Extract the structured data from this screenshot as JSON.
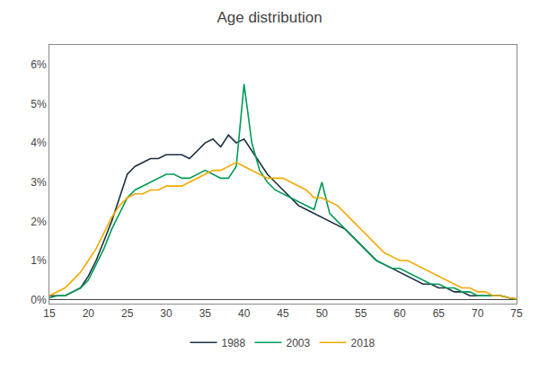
{
  "chart_data": {
    "type": "line",
    "title": "Age distribution",
    "x": [
      15,
      16,
      17,
      18,
      19,
      20,
      21,
      22,
      23,
      24,
      25,
      26,
      27,
      28,
      29,
      30,
      31,
      32,
      33,
      34,
      35,
      36,
      37,
      38,
      39,
      40,
      41,
      42,
      43,
      44,
      45,
      46,
      47,
      48,
      49,
      50,
      51,
      52,
      53,
      54,
      55,
      56,
      57,
      58,
      59,
      60,
      61,
      62,
      63,
      64,
      65,
      66,
      67,
      68,
      69,
      70,
      71,
      72,
      73,
      74,
      75
    ],
    "series": [
      {
        "name": "1988",
        "color": "#1c3040",
        "values": [
          0.001,
          0.001,
          0.001,
          0.002,
          0.003,
          0.006,
          0.01,
          0.015,
          0.02,
          0.026,
          0.032,
          0.034,
          0.035,
          0.036,
          0.036,
          0.037,
          0.037,
          0.037,
          0.036,
          0.038,
          0.04,
          0.041,
          0.039,
          0.042,
          0.04,
          0.041,
          0.038,
          0.035,
          0.032,
          0.03,
          0.028,
          0.026,
          0.024,
          0.023,
          0.022,
          0.021,
          0.02,
          0.019,
          0.018,
          0.016,
          0.014,
          0.012,
          0.01,
          0.009,
          0.008,
          0.007,
          0.006,
          0.005,
          0.004,
          0.004,
          0.003,
          0.003,
          0.002,
          0.002,
          0.001,
          0.001,
          0.001,
          0.001,
          0.001,
          0.0005,
          0.0002
        ]
      },
      {
        "name": "2003",
        "color": "#009b55",
        "values": [
          0.0005,
          0.001,
          0.001,
          0.002,
          0.003,
          0.005,
          0.009,
          0.013,
          0.018,
          0.022,
          0.026,
          0.028,
          0.029,
          0.03,
          0.031,
          0.032,
          0.032,
          0.031,
          0.031,
          0.032,
          0.033,
          0.032,
          0.031,
          0.031,
          0.034,
          0.055,
          0.04,
          0.033,
          0.03,
          0.028,
          0.027,
          0.026,
          0.025,
          0.024,
          0.023,
          0.03,
          0.022,
          0.02,
          0.018,
          0.016,
          0.014,
          0.012,
          0.01,
          0.009,
          0.008,
          0.008,
          0.007,
          0.006,
          0.005,
          0.004,
          0.004,
          0.003,
          0.003,
          0.002,
          0.002,
          0.001,
          0.001,
          0.001,
          0.001,
          0.0005,
          0.0001
        ]
      },
      {
        "name": "2018",
        "color": "#f5a800",
        "values": [
          0.001,
          0.002,
          0.003,
          0.005,
          0.007,
          0.01,
          0.013,
          0.017,
          0.021,
          0.024,
          0.026,
          0.027,
          0.027,
          0.028,
          0.028,
          0.029,
          0.029,
          0.029,
          0.03,
          0.031,
          0.032,
          0.033,
          0.033,
          0.034,
          0.035,
          0.034,
          0.033,
          0.032,
          0.031,
          0.031,
          0.031,
          0.03,
          0.029,
          0.028,
          0.026,
          0.026,
          0.025,
          0.024,
          0.022,
          0.02,
          0.018,
          0.016,
          0.014,
          0.012,
          0.011,
          0.01,
          0.01,
          0.009,
          0.008,
          0.007,
          0.006,
          0.005,
          0.004,
          0.003,
          0.003,
          0.002,
          0.002,
          0.001,
          0.001,
          0.0005,
          0.0002
        ]
      }
    ],
    "xlim": [
      15,
      75
    ],
    "xticks": [
      15,
      20,
      25,
      30,
      35,
      40,
      45,
      50,
      55,
      60,
      65,
      70,
      75
    ],
    "ylim": [
      -0.001,
      0.065
    ],
    "yticks": [
      {
        "value": 0,
        "label": "0%"
      },
      {
        "value": 0.01,
        "label": "1%"
      },
      {
        "value": 0.02,
        "label": "2%"
      },
      {
        "value": 0.03,
        "label": "3%"
      },
      {
        "value": 0.04,
        "label": "4%"
      },
      {
        "value": 0.05,
        "label": "5%"
      },
      {
        "value": 0.06,
        "label": "6%"
      }
    ],
    "grid": false,
    "legend": "bottom"
  }
}
